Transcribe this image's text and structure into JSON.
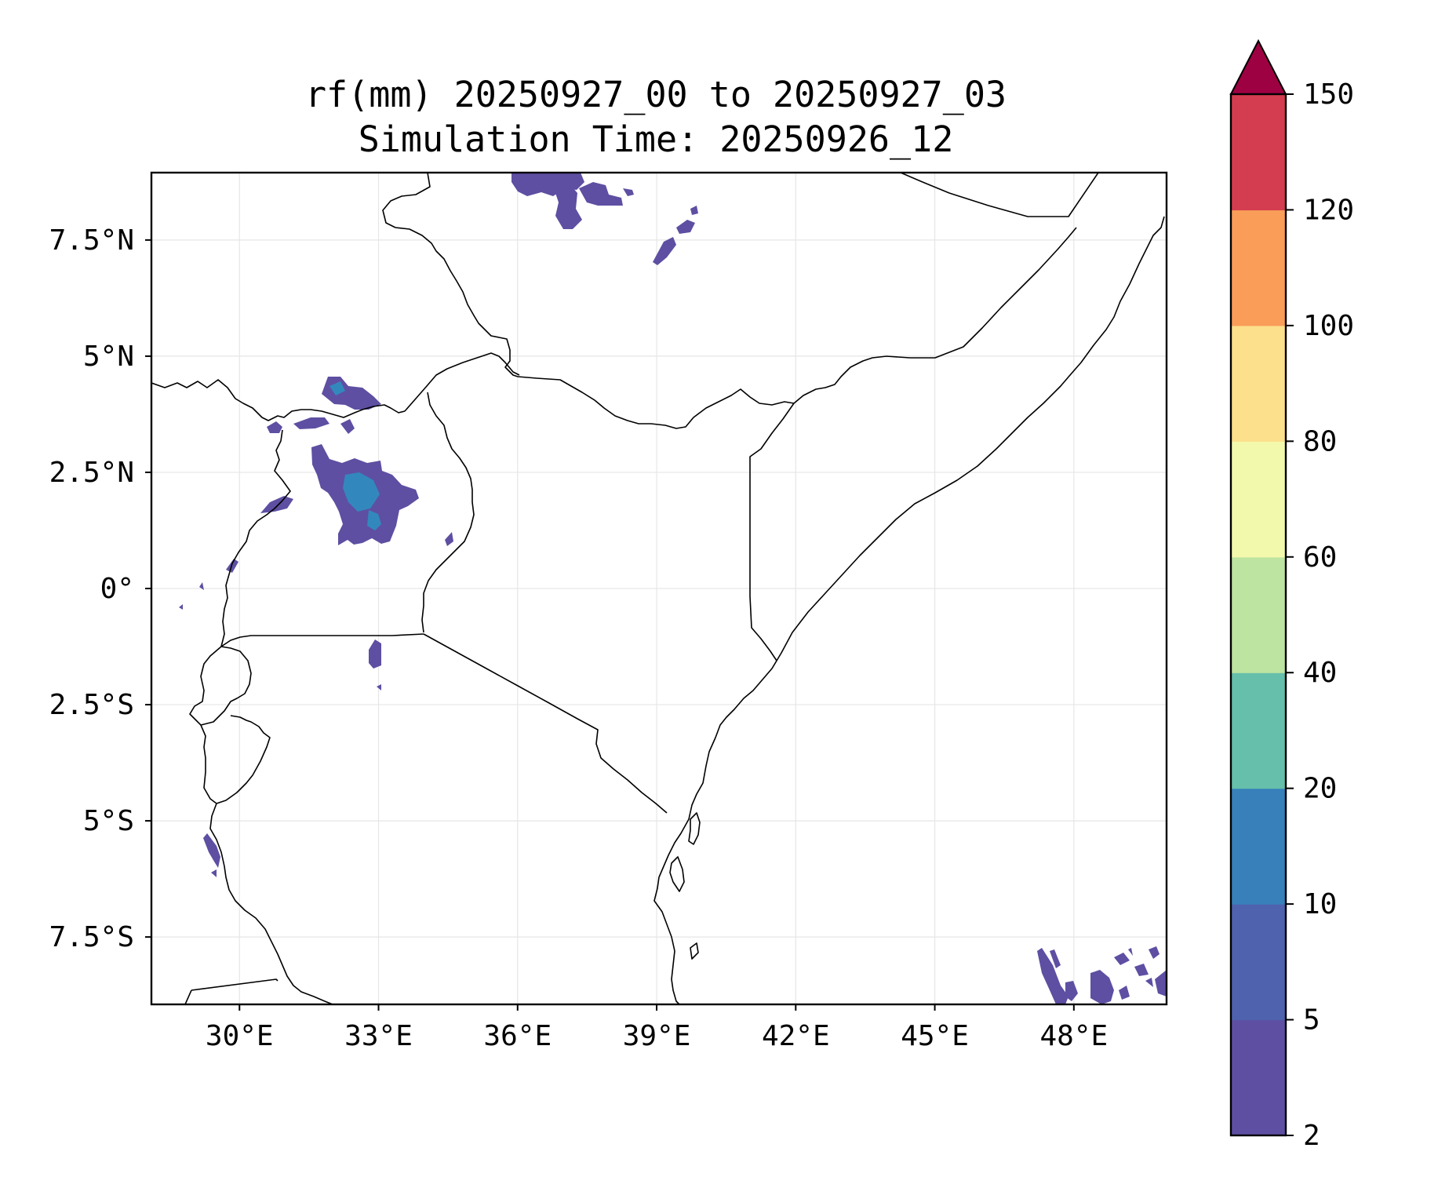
{
  "title": {
    "line1": "rf(mm) 20250927_00 to 20250927_03",
    "line2": "Simulation Time: 20250926_12"
  },
  "map": {
    "variable": "rf(mm)",
    "extent": {
      "lon_min": 28.1,
      "lon_max": 50.0,
      "lat_min": -8.95,
      "lat_max": 8.95
    },
    "xticks": [
      {
        "value": 30,
        "label": "30°E"
      },
      {
        "value": 33,
        "label": "33°E"
      },
      {
        "value": 36,
        "label": "36°E"
      },
      {
        "value": 39,
        "label": "39°E"
      },
      {
        "value": 42,
        "label": "42°E"
      },
      {
        "value": 45,
        "label": "45°E"
      },
      {
        "value": 48,
        "label": "48°E"
      }
    ],
    "yticks": [
      {
        "value": 7.5,
        "label": "7.5°N"
      },
      {
        "value": 5,
        "label": "5°N"
      },
      {
        "value": 2.5,
        "label": "2.5°N"
      },
      {
        "value": 0,
        "label": "0°"
      },
      {
        "value": -2.5,
        "label": "2.5°S"
      },
      {
        "value": -5,
        "label": "5°S"
      },
      {
        "value": -7.5,
        "label": "7.5°S"
      }
    ],
    "rain_cells": [
      {
        "region": "Lake Kyoga / central Uganda",
        "lat": 2.0,
        "lon": 32.8,
        "class": "2-5",
        "core_class": "10-20"
      },
      {
        "region": "north-west Uganda",
        "lat": 4.3,
        "lon": 32.3,
        "class": "2-5",
        "core_class": "5-10"
      },
      {
        "region": "south-west Ethiopia",
        "lat": 8.6,
        "lon": 36.8,
        "class": "2-5"
      },
      {
        "region": "southern Ethiopia",
        "lat": 7.4,
        "lon": 39.5,
        "class": "2-5"
      },
      {
        "region": "Lake Victoria",
        "lat": -1.7,
        "lon": 33.0,
        "class": "2-5"
      },
      {
        "region": "Lake Tanganyika",
        "lat": -6.0,
        "lon": 29.4,
        "class": "2-5"
      },
      {
        "region": "Indian Ocean south-east",
        "lat": -8.5,
        "lon": 48.5,
        "class": "2-5"
      }
    ]
  },
  "colorbar": {
    "boundaries": [
      2,
      5,
      10,
      20,
      40,
      60,
      80,
      100,
      120,
      150
    ],
    "tick_labels": [
      "2",
      "5",
      "10",
      "20",
      "40",
      "60",
      "80",
      "100",
      "120",
      "150"
    ],
    "colors": [
      "#5e4fa2",
      "#4e62ad",
      "#3880ba",
      "#65bfaa",
      "#bde4a0",
      "#f3f9ac",
      "#fde08c",
      "#f99d59",
      "#d43d4f"
    ],
    "extend_color": "#9e0142",
    "extend": "max"
  }
}
